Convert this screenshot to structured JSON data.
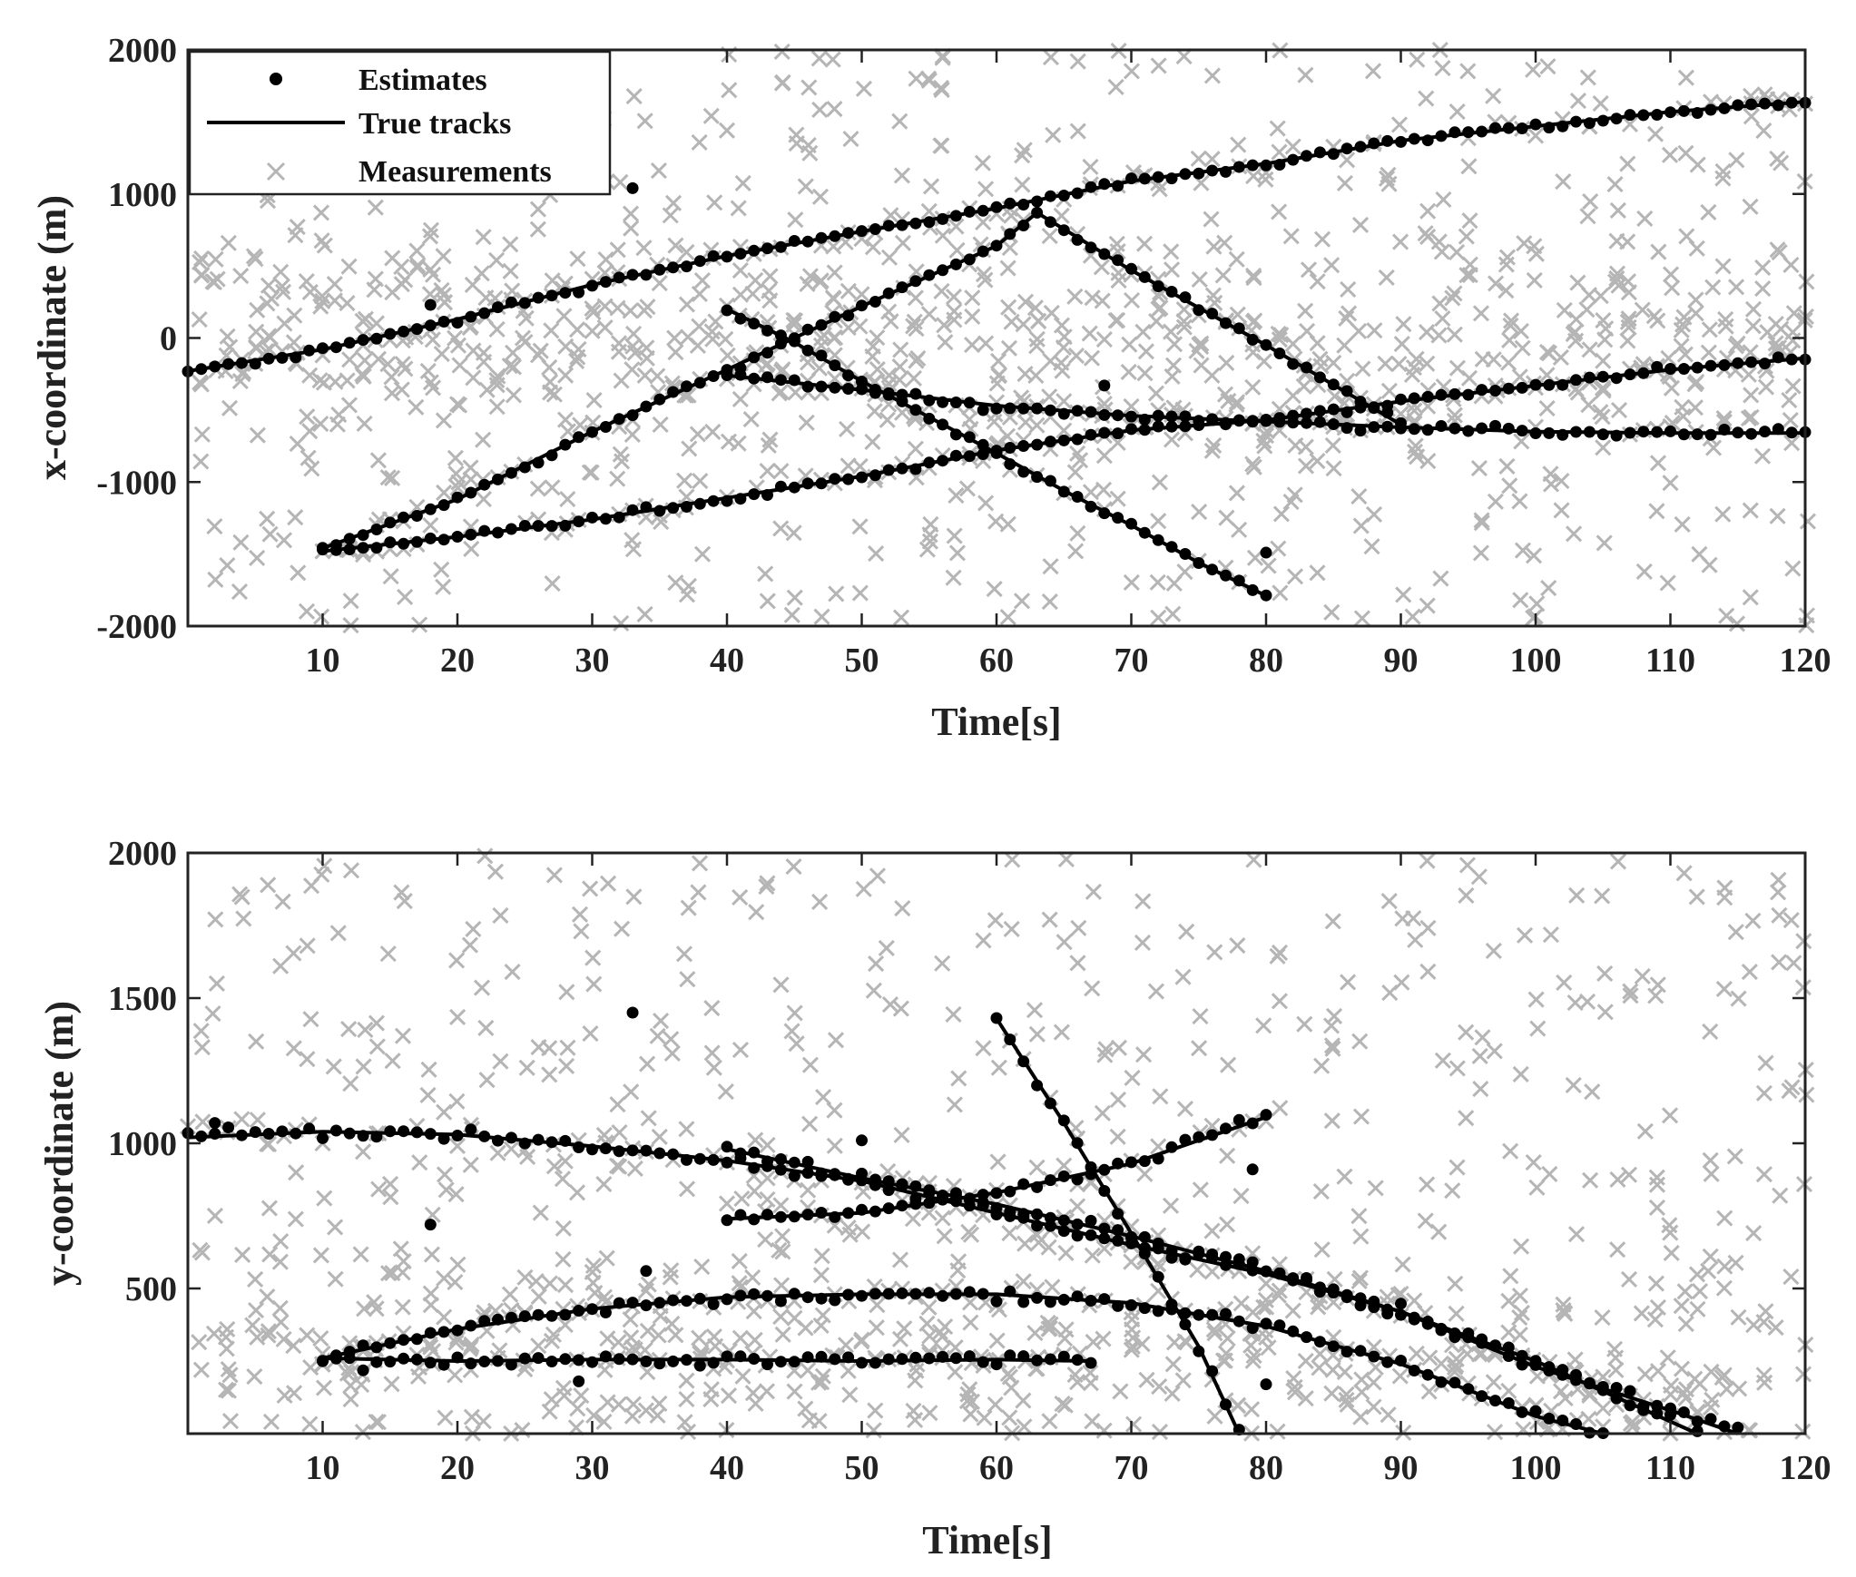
{
  "colors": {
    "estimate": "#000000",
    "track": "#000000",
    "measurement": "#b5b5b5",
    "axis": "#222222"
  },
  "chart_data": [
    {
      "type": "scatter",
      "id": "x",
      "xlabel": "Time[s]",
      "ylabel": "x-coordinate (m)",
      "xlim": [
        0,
        120
      ],
      "ylim": [
        -2000,
        2000
      ],
      "xticks": [
        10,
        20,
        30,
        40,
        50,
        60,
        70,
        80,
        90,
        100,
        110,
        120
      ],
      "xtick_labels": [
        "10",
        "20",
        "30",
        "40",
        "50",
        "60",
        "70",
        "80",
        "90",
        "100",
        "110",
        "120"
      ],
      "yticks": [
        2000,
        1000,
        0,
        -1000,
        -2000
      ],
      "ytick_labels": [
        "2000",
        "1000",
        "0",
        "-1000",
        "-2000"
      ],
      "legend": {
        "position": "top-left",
        "entries": [
          {
            "name": "Estimates",
            "marker": "dot"
          },
          {
            "name": "True tracks",
            "marker": "line"
          },
          {
            "name": "Measurements",
            "marker": "cross"
          }
        ]
      },
      "tracks": [
        {
          "name": "Track 1",
          "t_start": 0,
          "t_end": 120,
          "points": [
            [
              0,
              -230
            ],
            [
              10,
              -80
            ],
            [
              20,
              130
            ],
            [
              30,
              370
            ],
            [
              40,
              570
            ],
            [
              50,
              740
            ],
            [
              60,
              900
            ],
            [
              70,
              1090
            ],
            [
              80,
              1210
            ],
            [
              90,
              1370
            ],
            [
              100,
              1470
            ],
            [
              110,
              1570
            ],
            [
              120,
              1640
            ]
          ]
        },
        {
          "name": "Track 2",
          "t_start": 10,
          "t_end": 90,
          "points": [
            [
              10,
              -1460
            ],
            [
              20,
              -1120
            ],
            [
              30,
              -650
            ],
            [
              40,
              -220
            ],
            [
              50,
              220
            ],
            [
              60,
              640
            ],
            [
              63,
              870
            ],
            [
              70,
              470
            ],
            [
              80,
              -50
            ],
            [
              90,
              -600
            ]
          ]
        },
        {
          "name": "Track 3",
          "t_start": 10,
          "t_end": 120,
          "points": [
            [
              10,
              -1480
            ],
            [
              20,
              -1380
            ],
            [
              30,
              -1260
            ],
            [
              40,
              -1110
            ],
            [
              50,
              -960
            ],
            [
              60,
              -780
            ],
            [
              70,
              -640
            ],
            [
              80,
              -570
            ],
            [
              90,
              -440
            ],
            [
              100,
              -330
            ],
            [
              110,
              -220
            ],
            [
              120,
              -140
            ]
          ]
        },
        {
          "name": "Track 4",
          "t_start": 40,
          "t_end": 80,
          "points": [
            [
              40,
              200
            ],
            [
              45,
              -30
            ],
            [
              50,
              -300
            ],
            [
              55,
              -550
            ],
            [
              60,
              -800
            ],
            [
              65,
              -1060
            ],
            [
              70,
              -1300
            ],
            [
              75,
              -1560
            ],
            [
              80,
              -1790
            ]
          ]
        },
        {
          "name": "Track 5",
          "t_start": 40,
          "t_end": 120,
          "points": [
            [
              40,
              -260
            ],
            [
              50,
              -360
            ],
            [
              60,
              -470
            ],
            [
              70,
              -540
            ],
            [
              80,
              -580
            ],
            [
              90,
              -620
            ],
            [
              100,
              -650
            ],
            [
              110,
              -660
            ],
            [
              120,
              -660
            ]
          ]
        }
      ],
      "outlier_estimates": [
        [
          18,
          230
        ],
        [
          33,
          1040
        ],
        [
          68,
          -330
        ],
        [
          80,
          -1490
        ]
      ]
    },
    {
      "type": "scatter",
      "id": "y",
      "xlabel": "Time[s]",
      "ylabel": "y-coordinate (m)",
      "xlim": [
        0,
        120
      ],
      "ylim": [
        0,
        2000
      ],
      "xticks": [
        10,
        20,
        30,
        40,
        50,
        60,
        70,
        80,
        90,
        100,
        110,
        120
      ],
      "xtick_labels": [
        "10",
        "20",
        "30",
        "40",
        "50",
        "60",
        "70",
        "80",
        "90",
        "100",
        "110",
        "120"
      ],
      "yticks": [
        2000,
        1500,
        1000,
        500
      ],
      "ytick_labels": [
        "2000",
        "1500",
        "1000",
        "500"
      ],
      "tracks": [
        {
          "name": "Track 1",
          "t_start": 0,
          "t_end": 115,
          "points": [
            [
              0,
              1020
            ],
            [
              10,
              1040
            ],
            [
              20,
              1030
            ],
            [
              30,
              990
            ],
            [
              40,
              940
            ],
            [
              50,
              870
            ],
            [
              60,
              760
            ],
            [
              70,
              650
            ],
            [
              80,
              550
            ],
            [
              90,
              420
            ],
            [
              100,
              230
            ],
            [
              110,
              80
            ],
            [
              115,
              0
            ]
          ]
        },
        {
          "name": "Track 2",
          "t_start": 10,
          "t_end": 105,
          "points": [
            [
              10,
              260
            ],
            [
              20,
              360
            ],
            [
              30,
              430
            ],
            [
              40,
              470
            ],
            [
              50,
              480
            ],
            [
              60,
              480
            ],
            [
              70,
              450
            ],
            [
              80,
              370
            ],
            [
              90,
              240
            ],
            [
              100,
              60
            ],
            [
              105,
              0
            ]
          ]
        },
        {
          "name": "Track 3",
          "t_start": 10,
          "t_end": 67,
          "points": [
            [
              10,
              260
            ],
            [
              20,
              250
            ],
            [
              30,
              255
            ],
            [
              40,
              255
            ],
            [
              50,
              250
            ],
            [
              60,
              255
            ],
            [
              67,
              250
            ]
          ]
        },
        {
          "name": "Track 4",
          "t_start": 40,
          "t_end": 80,
          "points": [
            [
              40,
              740
            ],
            [
              50,
              760
            ],
            [
              60,
              830
            ],
            [
              70,
              930
            ],
            [
              80,
              1090
            ]
          ]
        },
        {
          "name": "Track 5",
          "t_start": 40,
          "t_end": 112,
          "points": [
            [
              40,
              980
            ],
            [
              50,
              880
            ],
            [
              60,
              790
            ],
            [
              70,
              680
            ],
            [
              80,
              560
            ],
            [
              90,
              420
            ],
            [
              100,
              250
            ],
            [
              112,
              0
            ]
          ]
        },
        {
          "name": "Track 6",
          "t_start": 60,
          "t_end": 78,
          "points": [
            [
              60,
              1430
            ],
            [
              65,
              1070
            ],
            [
              70,
              690
            ],
            [
              75,
              300
            ],
            [
              78,
              0
            ]
          ]
        }
      ],
      "outlier_estimates": [
        [
          2,
          1070
        ],
        [
          18,
          720
        ],
        [
          33,
          1450
        ],
        [
          50,
          1010
        ],
        [
          79,
          910
        ],
        [
          80,
          170
        ],
        [
          29,
          180
        ],
        [
          34,
          560
        ]
      ]
    }
  ]
}
